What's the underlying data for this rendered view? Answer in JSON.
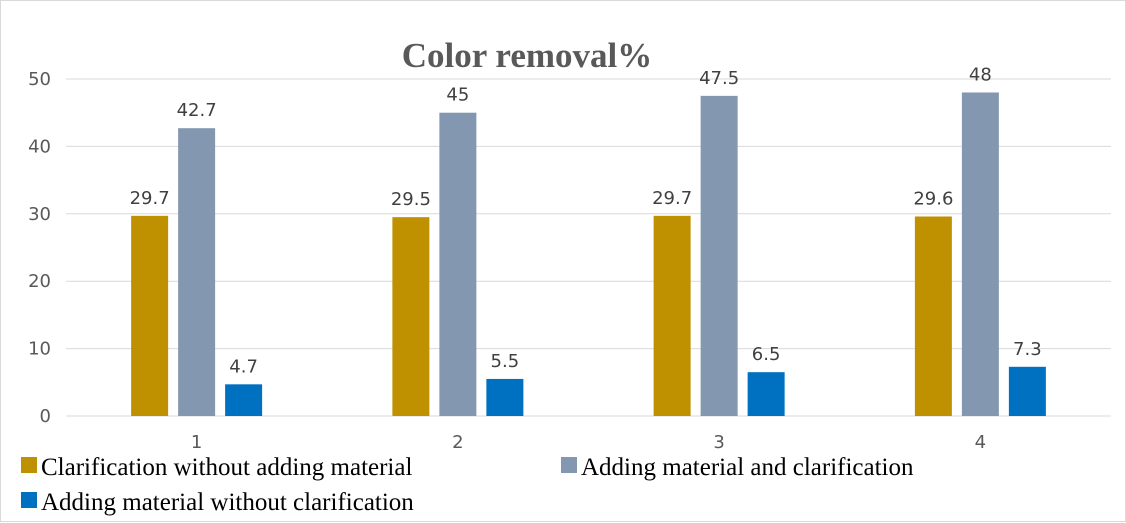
{
  "chart_data": {
    "type": "bar",
    "title": "Color removal%",
    "xlabel": "",
    "ylabel": "",
    "categories": [
      "1",
      "2",
      "3",
      "4"
    ],
    "ylim": [
      0,
      50
    ],
    "yticks": [
      0,
      10,
      20,
      30,
      40,
      50
    ],
    "grid": true,
    "legend_position": "bottom",
    "series": [
      {
        "name": "Clarification without adding material",
        "color": "#BF9000",
        "values": [
          29.7,
          29.5,
          29.7,
          29.6
        ],
        "labels": [
          "29.7",
          "29.5",
          "29.7",
          "29.6"
        ]
      },
      {
        "name": "Adding material and clarification",
        "color": "#8497B0",
        "values": [
          42.7,
          45,
          47.5,
          48
        ],
        "labels": [
          "42.7",
          "45",
          "47.5",
          "48"
        ]
      },
      {
        "name": "Adding material without clarification",
        "color": "#0070C0",
        "values": [
          4.7,
          5.5,
          6.5,
          7.3
        ],
        "labels": [
          "4.7",
          "5.5",
          "6.5",
          "7.3"
        ]
      }
    ]
  }
}
